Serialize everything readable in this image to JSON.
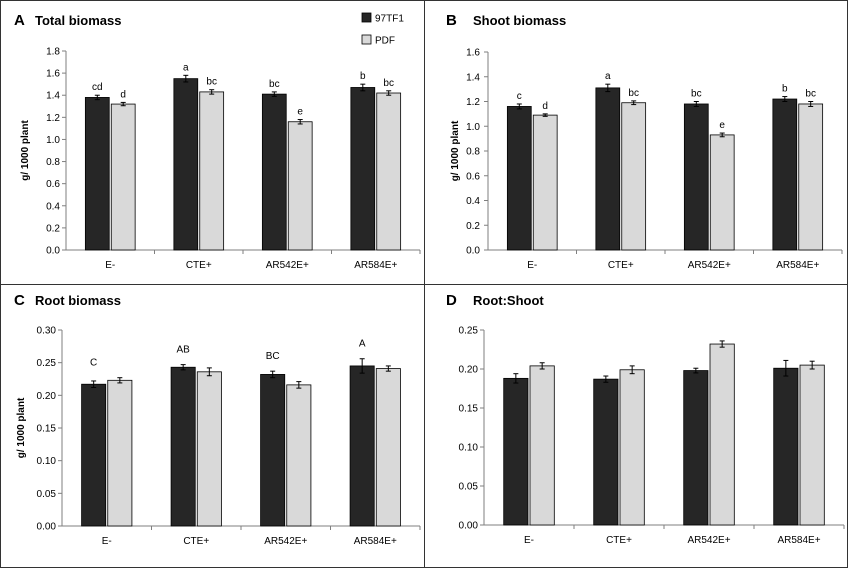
{
  "figure": {
    "legend": [
      {
        "name": "97TF1",
        "color": "#262626"
      },
      {
        "name": "PDF",
        "color": "#d9d9d9"
      }
    ]
  },
  "chart_data": [
    {
      "panel": "A",
      "type": "bar",
      "title": "Total biomass",
      "ylabel": "g/ 1000 plant",
      "categories": [
        "E-",
        "CTE+",
        "AR542E+",
        "AR584E+"
      ],
      "ylim": [
        0,
        1.8
      ],
      "yticks": [
        "0.0",
        "0.2",
        "0.4",
        "0.6",
        "0.8",
        "1.0",
        "1.2",
        "1.4",
        "1.6",
        "1.8"
      ],
      "series": [
        {
          "name": "97TF1",
          "values": [
            1.38,
            1.55,
            1.41,
            1.47
          ],
          "errors": [
            0.02,
            0.03,
            0.02,
            0.03
          ]
        },
        {
          "name": "PDF",
          "values": [
            1.32,
            1.43,
            1.16,
            1.42
          ],
          "errors": [
            0.015,
            0.02,
            0.02,
            0.02
          ]
        }
      ],
      "bar_labels": {
        "mode": "per-bar",
        "labels": [
          [
            "cd",
            "a",
            "bc",
            "b"
          ],
          [
            "d",
            "bc",
            "e",
            "bc"
          ]
        ]
      },
      "legend_shown": true
    },
    {
      "panel": "B",
      "type": "bar",
      "title": "Shoot biomass",
      "ylabel": "g/ 1000 plant",
      "categories": [
        "E-",
        "CTE+",
        "AR542E+",
        "AR584E+"
      ],
      "ylim": [
        0,
        1.6
      ],
      "yticks": [
        "0.0",
        "0.2",
        "0.4",
        "0.6",
        "0.8",
        "1.0",
        "1.2",
        "1.4",
        "1.6"
      ],
      "series": [
        {
          "name": "97TF1",
          "values": [
            1.16,
            1.31,
            1.18,
            1.22
          ],
          "errors": [
            0.02,
            0.03,
            0.02,
            0.02
          ]
        },
        {
          "name": "PDF",
          "values": [
            1.09,
            1.19,
            0.93,
            1.18
          ],
          "errors": [
            0.01,
            0.015,
            0.015,
            0.02
          ]
        }
      ],
      "bar_labels": {
        "mode": "per-bar",
        "labels": [
          [
            "c",
            "a",
            "bc",
            "b"
          ],
          [
            "d",
            "bc",
            "e",
            "bc"
          ]
        ]
      },
      "legend_shown": false
    },
    {
      "panel": "C",
      "type": "bar",
      "title": "Root biomass",
      "ylabel": "g/ 1000 plant",
      "categories": [
        "E-",
        "CTE+",
        "AR542E+",
        "AR584E+"
      ],
      "ylim": [
        0,
        0.3
      ],
      "yticks": [
        "0.00",
        "0.05",
        "0.10",
        "0.15",
        "0.20",
        "0.25",
        "0.30"
      ],
      "series": [
        {
          "name": "97TF1",
          "values": [
            0.217,
            0.243,
            0.232,
            0.245
          ],
          "errors": [
            0.005,
            0.004,
            0.005,
            0.011
          ]
        },
        {
          "name": "PDF",
          "values": [
            0.223,
            0.236,
            0.216,
            0.241
          ],
          "errors": [
            0.004,
            0.006,
            0.005,
            0.004
          ]
        }
      ],
      "bar_labels": {
        "mode": "per-group",
        "labels": [
          "C",
          "AB",
          "BC",
          "A"
        ]
      },
      "legend_shown": false
    },
    {
      "panel": "D",
      "type": "bar",
      "title": "Root:Shoot",
      "ylabel": "",
      "categories": [
        "E-",
        "CTE+",
        "AR542E+",
        "AR584E+"
      ],
      "ylim": [
        0,
        0.25
      ],
      "yticks": [
        "0.00",
        "0.05",
        "0.10",
        "0.15",
        "0.20",
        "0.25"
      ],
      "series": [
        {
          "name": "97TF1",
          "values": [
            0.188,
            0.187,
            0.198,
            0.201
          ],
          "errors": [
            0.006,
            0.004,
            0.003,
            0.01
          ]
        },
        {
          "name": "PDF",
          "values": [
            0.204,
            0.199,
            0.232,
            0.205
          ],
          "errors": [
            0.004,
            0.005,
            0.004,
            0.005
          ]
        }
      ],
      "bar_labels": {
        "mode": "none",
        "labels": []
      },
      "legend_shown": false
    }
  ]
}
